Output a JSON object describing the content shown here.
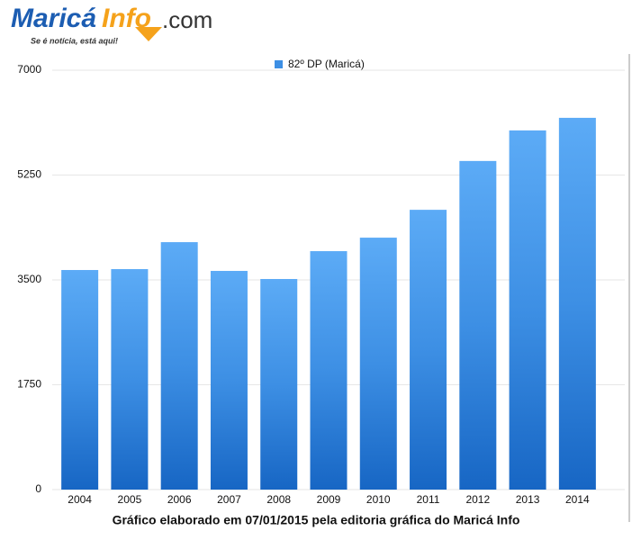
{
  "logo": {
    "name": "Maricá",
    "brand": "Info",
    "domain": ".com",
    "tagline": "Se é notícia, está aqui!"
  },
  "chart_data": {
    "type": "bar",
    "legend": "82º DP (Maricá)",
    "caption": "Gráfico elaborado em 07/01/2015 pela editoria gráfica do Maricá Info",
    "categories": [
      "2004",
      "2005",
      "2006",
      "2007",
      "2008",
      "2009",
      "2010",
      "2011",
      "2012",
      "2013",
      "2014"
    ],
    "values": [
      3665,
      3680,
      4130,
      3650,
      3515,
      3980,
      4205,
      4670,
      5485,
      5995,
      6205
    ],
    "color": "#3d8fe4",
    "ylim": [
      0,
      7000
    ],
    "yticks": [
      0,
      1750,
      3500,
      5250,
      7000
    ],
    "grid": true
  }
}
